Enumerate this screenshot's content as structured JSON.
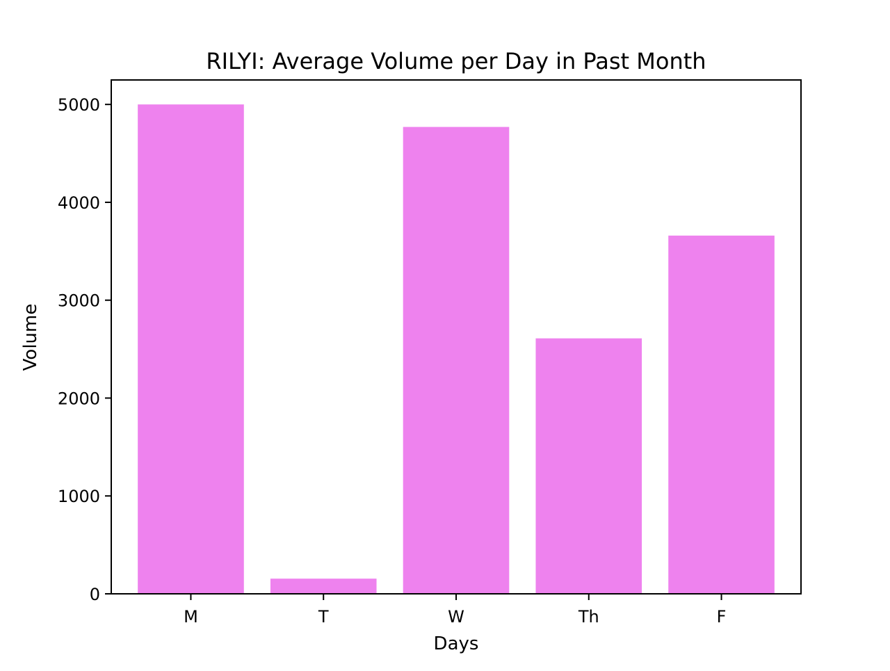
{
  "chart_data": {
    "type": "bar",
    "title": "RILYI: Average Volume per Day in Past Month",
    "xlabel": "Days",
    "ylabel": "Volume",
    "categories": [
      "M",
      "T",
      "W",
      "Th",
      "F"
    ],
    "values": [
      5000,
      155,
      4770,
      2610,
      3660
    ],
    "ylim": [
      0,
      5250
    ],
    "yticks": [
      0,
      1000,
      2000,
      3000,
      4000,
      5000
    ],
    "bar_color": "#ee82ee",
    "grid": false,
    "legend": "none"
  }
}
